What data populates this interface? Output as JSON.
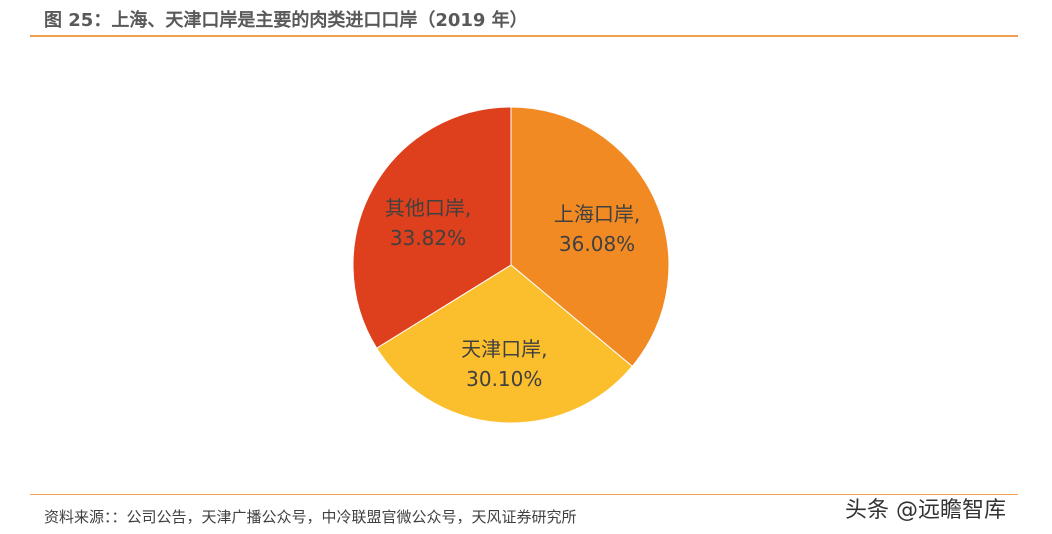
{
  "header": {
    "title": "图 25：上海、天津口岸是主要的肉类进口口岸（2019 年）"
  },
  "footer": {
    "source": "资料来源：：公司公告，天津广播公众号，中冷联盟官微公众号，天风证券研究所",
    "watermark": "头条 @远瞻智库"
  },
  "chart_data": {
    "type": "pie",
    "title": "",
    "start_angle_deg": 0,
    "direction": "clockwise",
    "slices": [
      {
        "name": "上海口岸",
        "value": 36.08,
        "label_name": "上海口岸,",
        "label_value": "36.08%",
        "color": "#F28A24"
      },
      {
        "name": "天津口岸",
        "value": 30.1,
        "label_name": "天津口岸,",
        "label_value": "30.10%",
        "color": "#FBBE2C"
      },
      {
        "name": "其他口岸",
        "value": 33.82,
        "label_name": "其他口岸,",
        "label_value": "33.82%",
        "color": "#DE3F1C"
      }
    ],
    "legend": "none"
  }
}
